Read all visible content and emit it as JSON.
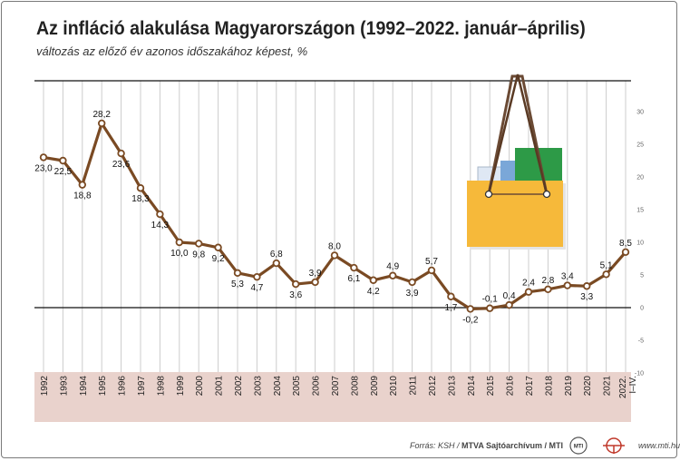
{
  "header": {
    "title": "Az infláció alakulása Magyarországon (1992–2022. január–április)",
    "subtitle": "változás az előző év azonos időszakához képest, %"
  },
  "footer": {
    "source_prefix": "Forrás: KSH /",
    "source_agency": "MTVA Sajtóarchívum / MTI",
    "logo_text": "MTI",
    "website": "www.mti.hu"
  },
  "colors": {
    "line": "#7a4a23",
    "marker_fill": "#ffffff",
    "grid": "#cccccc",
    "axis_band": "#e9d2cc",
    "bag": "#f6b93a"
  },
  "chart_data": {
    "type": "line",
    "title": "Az infláció alakulása Magyarországon (1992–2022. január–április)",
    "subtitle": "változás az előző év azonos időszakához képest, %",
    "categories": [
      "1992",
      "1993",
      "1994",
      "1995",
      "1996",
      "1997",
      "1998",
      "1999",
      "2000",
      "2001",
      "2002",
      "2003",
      "2004",
      "2005",
      "2006",
      "2007",
      "2008",
      "2009",
      "2010",
      "2011",
      "2012",
      "2013",
      "2014",
      "2015",
      "2016",
      "2017",
      "2018",
      "2019",
      "2020",
      "2021",
      "2022. I–IV."
    ],
    "value_labels": [
      "23,0",
      "22,5",
      "18,8",
      "28,2",
      "23,6",
      "18,3",
      "14,3",
      "10,0",
      "9,8",
      "9,2",
      "5,3",
      "4,7",
      "6,8",
      "3,6",
      "3,9",
      "8,0",
      "6,1",
      "4,2",
      "4,9",
      "3,9",
      "5,7",
      "1,7",
      "-0,2",
      "-0,1",
      "0,4",
      "2,4",
      "2,8",
      "3,4",
      "3,3",
      "5,1",
      "8,5"
    ],
    "series": [
      {
        "values": [
          23.0,
          22.5,
          18.8,
          28.2,
          23.6,
          18.3,
          14.3,
          10.0,
          9.8,
          9.2,
          5.3,
          4.7,
          6.8,
          3.6,
          3.9,
          8.0,
          6.1,
          4.2,
          4.9,
          3.9,
          5.7,
          1.7,
          -0.2,
          -0.1,
          0.4,
          2.4,
          2.8,
          3.4,
          3.3,
          5.1,
          8.5
        ]
      }
    ],
    "y_ticks": [
      "30",
      "25",
      "20",
      "15",
      "10",
      "5",
      "0",
      "-5",
      "-10"
    ],
    "ylim": [
      -10,
      33
    ],
    "grid": true,
    "illustration": "shopping-bag"
  }
}
